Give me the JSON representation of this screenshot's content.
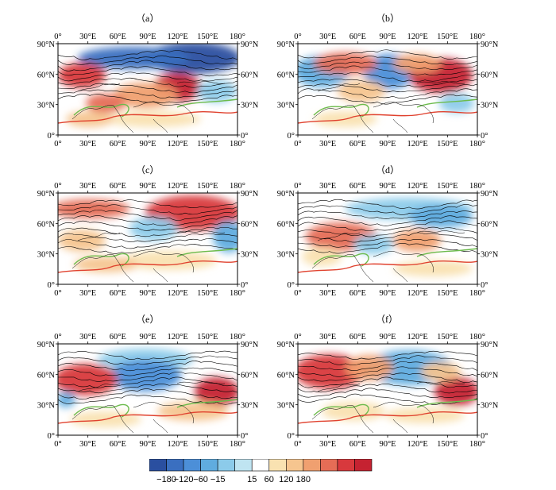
{
  "chart_data": {
    "type": "heatmap",
    "panels": [
      {
        "label": "（a）"
      },
      {
        "label": "（b）"
      },
      {
        "label": "（c）"
      },
      {
        "label": "（d）"
      },
      {
        "label": "（e）"
      },
      {
        "label": "（f）"
      }
    ],
    "x_ticks": [
      "0°",
      "30°E",
      "60°E",
      "90°E",
      "120°E",
      "150°E",
      "180°"
    ],
    "y_ticks_left": [
      "90°N",
      "60°N",
      "30°N",
      "0°"
    ],
    "y_ticks_right": [
      "90°N",
      "60°N",
      "30°N",
      "0°"
    ],
    "xlim": [
      0,
      180
    ],
    "ylim": [
      0,
      90
    ],
    "colorbar": {
      "labels": [
        "−180",
        "−120",
        "−60",
        "−15",
        "15",
        "60",
        "120",
        "180"
      ],
      "colors": [
        "#2a4fa0",
        "#3a6fc0",
        "#4c8fd8",
        "#60acdf",
        "#8ccbea",
        "#bfe4f1",
        "#ffffff",
        "#f9e2b1",
        "#f6c58f",
        "#f0a070",
        "#e56d56",
        "#d8393d",
        "#c52231"
      ]
    },
    "contour_colors": {
      "green": "#6cbb4c",
      "red": "#e0412e",
      "black": "#000000"
    }
  }
}
